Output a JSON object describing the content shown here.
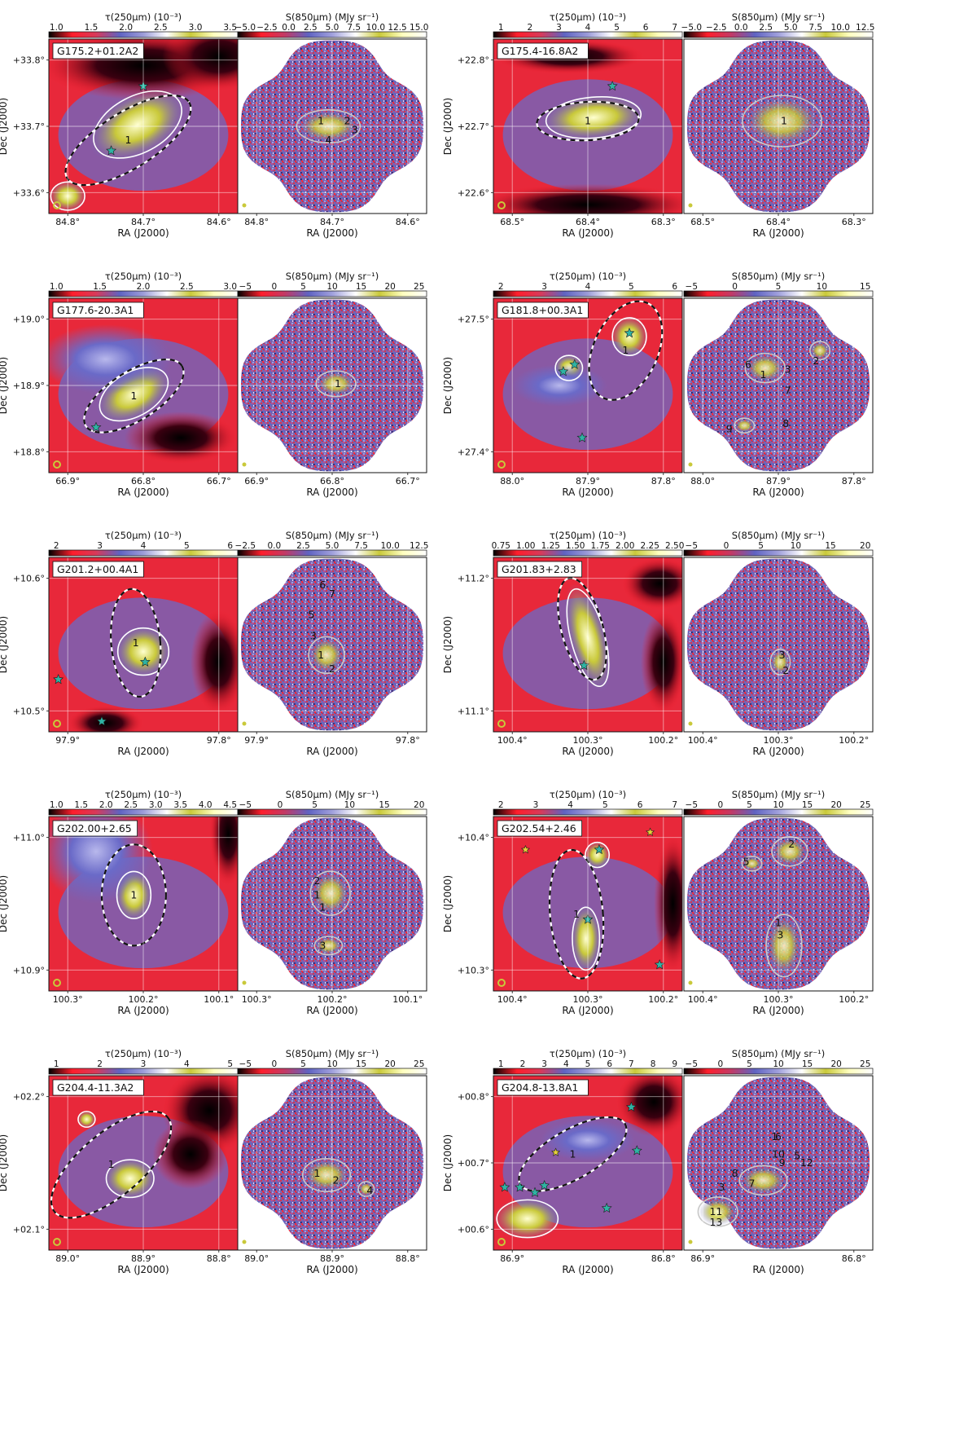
{
  "colormaps": {
    "tau": [
      "#000000",
      "#ff1e2c",
      "#d83a5a",
      "#5f63c2",
      "#9c9cd8",
      "#ffffff",
      "#c9c93a",
      "#ffffc0",
      "#ffffff"
    ],
    "s850": [
      "#000000",
      "#ff1e2c",
      "#c23a66",
      "#5f63c2",
      "#a0a0dc",
      "#ffffff",
      "#c9c93a",
      "#ffffc0",
      "#ffffff"
    ]
  },
  "markers": {
    "ysos_color": "#2fb3a3",
    "yellow_star_color": "#e8d23a",
    "beam_color": "#c9c93a"
  },
  "chart_data": [
    {
      "field": "G175.2+01.2A2",
      "type": "heatmap",
      "ylabel": "Dec (J2000)",
      "xlabel": "RA (J2000)",
      "tau": {
        "colorbar_title": "τ(250μm) (10⁻³)",
        "ticks": [
          "1.0",
          "1.5",
          "2.0",
          "2.5",
          "3.0",
          "3.5"
        ],
        "xticks": [
          "84.8°",
          "84.7°",
          "84.6°"
        ],
        "yticks": [
          "+33.8°",
          "+33.7°",
          "+33.6°"
        ]
      },
      "s850": {
        "colorbar_title": "S(850μm) (MJy sr⁻¹)",
        "ticks": [
          "−5.0",
          "−2.5",
          "0.0",
          "2.5",
          "5.0",
          "7.5",
          "10.0",
          "12.5",
          "15.0"
        ],
        "xticks": [
          "84.8°",
          "84.7°",
          "84.6°"
        ]
      },
      "clumps": [
        "1",
        "2",
        "3",
        "4"
      ]
    },
    {
      "field": "G175.4-16.8A2",
      "type": "heatmap",
      "ylabel": "Dec (J2000)",
      "xlabel": "RA (J2000)",
      "tau": {
        "colorbar_title": "τ(250μm) (10⁻³)",
        "ticks": [
          "1",
          "2",
          "3",
          "4",
          "5",
          "6",
          "7"
        ],
        "xticks": [
          "68.5°",
          "68.4°",
          "68.3°"
        ],
        "yticks": [
          "+22.8°",
          "+22.7°",
          "+22.6°"
        ]
      },
      "s850": {
        "colorbar_title": "S(850μm) (MJy sr⁻¹)",
        "ticks": [
          "−5.0",
          "−2.5",
          "0.0",
          "2.5",
          "5.0",
          "7.5",
          "10.0",
          "12.5"
        ],
        "xticks": [
          "68.5°",
          "68.4°",
          "68.3°"
        ]
      },
      "clumps": [
        "1"
      ]
    },
    {
      "field": "G177.6-20.3A1",
      "type": "heatmap",
      "ylabel": "Dec (J2000)",
      "xlabel": "RA (J2000)",
      "tau": {
        "colorbar_title": "τ(250μm) (10⁻³)",
        "ticks": [
          "1.0",
          "1.5",
          "2.0",
          "2.5",
          "3.0"
        ],
        "xticks": [
          "66.9°",
          "66.8°",
          "66.7°"
        ],
        "yticks": [
          "+19.0°",
          "+18.9°",
          "+18.8°"
        ]
      },
      "s850": {
        "colorbar_title": "S(850μm) (MJy sr⁻¹)",
        "ticks": [
          "−5",
          "0",
          "5",
          "10",
          "15",
          "20",
          "25"
        ],
        "xticks": [
          "66.9°",
          "66.8°",
          "66.7°"
        ]
      },
      "clumps": [
        "1"
      ]
    },
    {
      "field": "G181.8+00.3A1",
      "type": "heatmap",
      "ylabel": "Dec (J2000)",
      "xlabel": "RA (J2000)",
      "tau": {
        "colorbar_title": "τ(250μm) (10⁻³)",
        "ticks": [
          "2",
          "3",
          "4",
          "5",
          "6"
        ],
        "xticks": [
          "88.0°",
          "87.9°",
          "87.8°"
        ],
        "yticks": [
          "+27.5°",
          "+27.4°"
        ]
      },
      "s850": {
        "colorbar_title": "S(850μm) (MJy sr⁻¹)",
        "ticks": [
          "−5",
          "0",
          "5",
          "10",
          "15"
        ],
        "xticks": [
          "88.0°",
          "87.9°",
          "87.8°"
        ]
      },
      "clumps": [
        "1",
        "2",
        "3",
        "6",
        "7",
        "8",
        "9"
      ]
    },
    {
      "field": "G201.2+00.4A1",
      "type": "heatmap",
      "ylabel": "Dec (J2000)",
      "xlabel": "RA (J2000)",
      "tau": {
        "colorbar_title": "τ(250μm) (10⁻³)",
        "ticks": [
          "2",
          "3",
          "4",
          "5",
          "6"
        ],
        "xticks": [
          "97.9°",
          "97.8°"
        ],
        "yticks": [
          "+10.6°",
          "+10.5°"
        ]
      },
      "s850": {
        "colorbar_title": "S(850μm) (MJy sr⁻¹)",
        "ticks": [
          "−2.5",
          "0.0",
          "2.5",
          "5.0",
          "7.5",
          "10.0",
          "12.5"
        ],
        "xticks": [
          "97.9°",
          "97.8°"
        ]
      },
      "clumps": [
        "1",
        "2",
        "3",
        "5",
        "6",
        "7"
      ]
    },
    {
      "field": "G201.83+2.83",
      "type": "heatmap",
      "ylabel": "Dec (J2000)",
      "xlabel": "RA (J2000)",
      "tau": {
        "colorbar_title": "τ(250μm) (10⁻³)",
        "ticks": [
          "0.75",
          "1.00",
          "1.25",
          "1.50",
          "1.75",
          "2.00",
          "2.25",
          "2.50"
        ],
        "xticks": [
          "100.4°",
          "100.3°",
          "100.2°"
        ],
        "yticks": [
          "+11.2°",
          "+11.1°"
        ]
      },
      "s850": {
        "colorbar_title": "S(850μm) (MJy sr⁻¹)",
        "ticks": [
          "−5",
          "0",
          "5",
          "10",
          "15",
          "20"
        ],
        "xticks": [
          "100.4°",
          "100.3°",
          "100.2°"
        ]
      },
      "clumps": [
        "2",
        "3"
      ]
    },
    {
      "field": "G202.00+2.65",
      "type": "heatmap",
      "ylabel": "Dec (J2000)",
      "xlabel": "RA (J2000)",
      "tau": {
        "colorbar_title": "τ(250μm) (10⁻³)",
        "ticks": [
          "1.0",
          "1.5",
          "2.0",
          "2.5",
          "3.0",
          "3.5",
          "4.0",
          "4.5"
        ],
        "xticks": [
          "100.3°",
          "100.2°",
          "100.1°"
        ],
        "yticks": [
          "+11.0°",
          "+10.9°"
        ]
      },
      "s850": {
        "colorbar_title": "S(850μm) (MJy sr⁻¹)",
        "ticks": [
          "−5",
          "0",
          "5",
          "10",
          "15",
          "20"
        ],
        "xticks": [
          "100.3°",
          "100.2°",
          "100.1°"
        ]
      },
      "clumps": [
        "1",
        "2",
        "3"
      ]
    },
    {
      "field": "G202.54+2.46",
      "type": "heatmap",
      "ylabel": "Dec (J2000)",
      "xlabel": "RA (J2000)",
      "tau": {
        "colorbar_title": "τ(250μm) (10⁻³)",
        "ticks": [
          "2",
          "3",
          "4",
          "5",
          "6",
          "7"
        ],
        "xticks": [
          "100.4°",
          "100.3°",
          "100.2°"
        ],
        "yticks": [
          "+10.4°",
          "+10.3°"
        ]
      },
      "s850": {
        "colorbar_title": "S(850μm) (MJy sr⁻¹)",
        "ticks": [
          "−5",
          "0",
          "5",
          "10",
          "15",
          "20",
          "25"
        ],
        "xticks": [
          "100.4°",
          "100.3°",
          "100.2°"
        ]
      },
      "clumps": [
        "1",
        "2",
        "3",
        "5"
      ]
    },
    {
      "field": "G204.4-11.3A2",
      "type": "heatmap",
      "ylabel": "Dec (J2000)",
      "xlabel": "RA (J2000)",
      "tau": {
        "colorbar_title": "τ(250μm) (10⁻³)",
        "ticks": [
          "1",
          "2",
          "3",
          "4",
          "5"
        ],
        "xticks": [
          "89.0°",
          "88.9°",
          "88.8°"
        ],
        "yticks": [
          "+02.2°",
          "+02.1°"
        ]
      },
      "s850": {
        "colorbar_title": "S(850μm) (MJy sr⁻¹)",
        "ticks": [
          "−5",
          "0",
          "5",
          "10",
          "15",
          "20",
          "25"
        ],
        "xticks": [
          "89.0°",
          "88.9°",
          "88.8°"
        ]
      },
      "clumps": [
        "1",
        "2",
        "4"
      ]
    },
    {
      "field": "G204.8-13.8A1",
      "type": "heatmap",
      "ylabel": "Dec (J2000)",
      "xlabel": "RA (J2000)",
      "tau": {
        "colorbar_title": "τ(250μm) (10⁻³)",
        "ticks": [
          "1",
          "2",
          "3",
          "4",
          "5",
          "6",
          "7",
          "8",
          "9"
        ],
        "xticks": [
          "86.9°",
          "86.8°"
        ],
        "yticks": [
          "+00.8°",
          "+00.7°",
          "+00.6°"
        ]
      },
      "s850": {
        "colorbar_title": "S(850μm) (MJy sr⁻¹)",
        "ticks": [
          "−5",
          "0",
          "5",
          "10",
          "15",
          "20",
          "25"
        ],
        "xticks": [
          "86.9°",
          "86.8°"
        ]
      },
      "clumps": [
        "1",
        "3",
        "5",
        "6",
        "7",
        "8",
        "9",
        "10",
        "11",
        "12",
        "13"
      ]
    }
  ]
}
